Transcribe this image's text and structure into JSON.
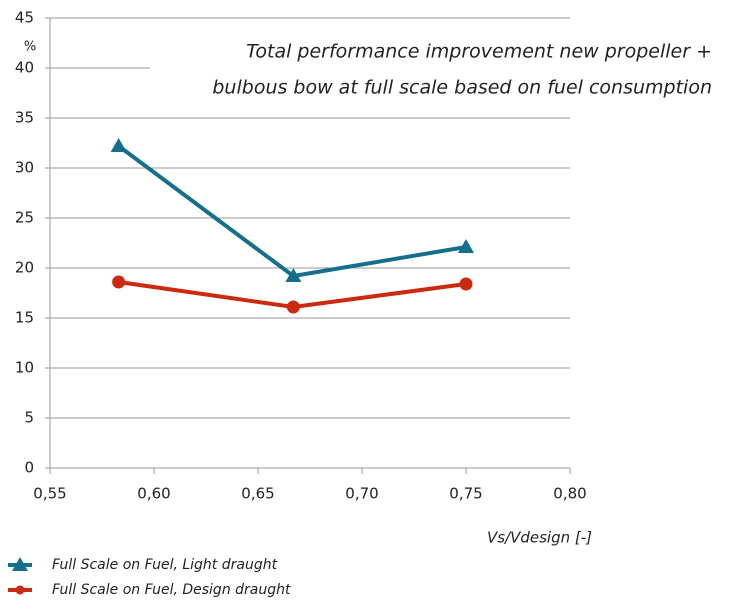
{
  "chart_data": {
    "type": "line",
    "title": [
      "Total performance improvement new propeller +",
      "bulbous bow at full scale based on fuel consumption"
    ],
    "ylabel": "%",
    "xlabel": "Vs/Vdesign [-]",
    "x": [
      0.583,
      0.667,
      0.75
    ],
    "series": [
      {
        "name": "Full Scale on Fuel, Light draught",
        "color": "#146e8c",
        "marker": "triangle",
        "values": [
          32.2,
          19.2,
          22.1
        ]
      },
      {
        "name": "Full Scale on Fuel, Design draught",
        "color": "#cc2a10",
        "marker": "circle",
        "values": [
          18.6,
          16.1,
          18.4
        ]
      }
    ],
    "xlim": [
      0.55,
      0.8
    ],
    "xticks": [
      {
        "value": 0.55,
        "label": "0,55"
      },
      {
        "value": 0.6,
        "label": "0,60"
      },
      {
        "value": 0.65,
        "label": "0,65"
      },
      {
        "value": 0.7,
        "label": "0,70"
      },
      {
        "value": 0.75,
        "label": "0,75"
      },
      {
        "value": 0.8,
        "label": "0,80"
      }
    ],
    "ylim": [
      0,
      45
    ],
    "yticks": [
      0,
      5,
      10,
      15,
      20,
      25,
      30,
      35,
      40,
      45
    ],
    "grid": true
  }
}
